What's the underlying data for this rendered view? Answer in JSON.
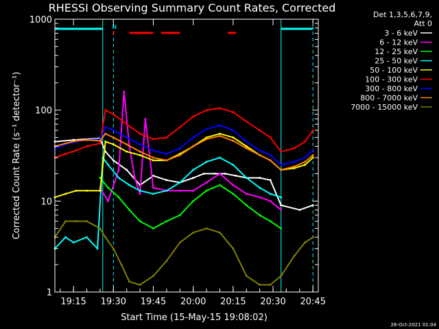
{
  "chart_data": {
    "type": "line",
    "title": "RHESSI Observing Summary Count Rates, Corrected",
    "xlabel": "Start Time (15-May-15 19:08:02)",
    "ylabel": "Corrected Count Rate (s⁻¹ detector⁻¹)",
    "y_scale": "log",
    "ylim": [
      1,
      1000
    ],
    "y_ticks": [
      {
        "value": 1,
        "label": "1"
      },
      {
        "value": 10,
        "label": "10"
      },
      {
        "value": 100,
        "label": "100"
      },
      {
        "value": 1000,
        "label": "1000"
      }
    ],
    "xlim": [
      "19:08",
      "20:47"
    ],
    "x_ticks": [
      "19:15",
      "19:30",
      "19:45",
      "20:00",
      "20:15",
      "20:30",
      "20:45"
    ],
    "legend_header": [
      "Det 1,3,5,6,7,9,",
      "Att 0"
    ],
    "legend_placement": "right",
    "timestamp": "26-Oct-2021 01:04",
    "annotations": {
      "N": {
        "time": "19:29",
        "label": "N",
        "color": "#00ffff"
      },
      "F": {
        "time": "19:29",
        "label": "F",
        "color": "#ff0000"
      }
    },
    "flags": {
      "saa_night_bars": [
        [
          "19:08",
          "19:26"
        ],
        [
          "20:33",
          "20:45"
        ]
      ],
      "flare_bars": [
        [
          "19:36",
          "19:45"
        ],
        [
          "19:48",
          "19:55"
        ],
        [
          "20:13",
          "20:16"
        ]
      ]
    },
    "vlines": {
      "solid": [
        "19:08",
        "19:26",
        "20:33"
      ],
      "dashed": [
        "19:30",
        "20:45"
      ]
    },
    "series": [
      {
        "name": "3 - 6 keV",
        "color": "#ffffff",
        "x": [
          "19:08",
          "19:15",
          "19:25",
          "19:27",
          "19:30",
          "19:35",
          "19:40",
          "19:45",
          "19:50",
          "19:55",
          "20:00",
          "20:04",
          "20:08",
          "20:12",
          "20:16",
          "20:20",
          "20:25",
          "20:29",
          "20:33",
          "20:40",
          "20:45"
        ],
        "y": [
          45,
          47,
          49,
          35,
          28,
          22,
          15,
          19,
          17,
          16,
          18,
          20,
          20,
          20,
          19,
          18,
          18,
          17,
          9,
          8,
          9
        ]
      },
      {
        "name": "6 - 12 keV",
        "color": "#ff00ff",
        "x": [
          "19:25",
          "19:28",
          "19:32",
          "19:34",
          "19:36",
          "19:38",
          "19:40",
          "19:42",
          "19:45",
          "19:50",
          "19:55",
          "20:00",
          "20:05",
          "20:10",
          "20:15",
          "20:20",
          "20:25",
          "20:29",
          "20:33"
        ],
        "y": [
          14,
          10,
          22,
          160,
          40,
          18,
          12,
          80,
          14,
          13,
          13,
          13,
          16,
          20,
          15,
          12,
          11,
          10,
          8
        ]
      },
      {
        "name": "12 - 25 keV",
        "color": "#00ff00",
        "x": [
          "19:25",
          "19:28",
          "19:32",
          "19:36",
          "19:40",
          "19:45",
          "19:50",
          "19:55",
          "20:00",
          "20:05",
          "20:10",
          "20:15",
          "20:20",
          "20:25",
          "20:29",
          "20:33"
        ],
        "y": [
          18,
          14,
          11,
          8,
          6,
          5,
          6,
          7,
          10,
          13,
          15,
          12,
          9,
          7,
          6,
          5
        ]
      },
      {
        "name": "25 - 50 keV",
        "color": "#00ffff",
        "x": [
          "19:08",
          "19:12",
          "19:15",
          "19:20",
          "19:24",
          "19:26",
          "19:28",
          "19:32",
          "19:36",
          "19:40",
          "19:45",
          "19:50",
          "19:55",
          "20:00",
          "20:05",
          "20:10",
          "20:15",
          "20:20",
          "20:25",
          "20:29",
          "20:33"
        ],
        "y": [
          3,
          4,
          3.5,
          4,
          3,
          30,
          25,
          18,
          15,
          13,
          12,
          13,
          16,
          22,
          27,
          30,
          25,
          18,
          14,
          12,
          11
        ]
      },
      {
        "name": "50 - 100 keV",
        "color": "#ffff00",
        "x": [
          "19:08",
          "19:12",
          "19:16",
          "19:20",
          "19:25",
          "19:27",
          "19:30",
          "19:35",
          "19:40",
          "19:45",
          "19:50",
          "19:55",
          "20:00",
          "20:05",
          "20:10",
          "20:15",
          "20:20",
          "20:25",
          "20:29",
          "20:33",
          "20:38",
          "20:42",
          "20:45"
        ],
        "y": [
          11,
          12,
          13,
          13,
          13,
          45,
          42,
          35,
          32,
          28,
          28,
          33,
          40,
          50,
          55,
          50,
          40,
          32,
          28,
          22,
          23,
          25,
          30
        ]
      },
      {
        "name": "100 - 300 keV",
        "color": "#ff0000",
        "x": [
          "19:08",
          "19:12",
          "19:16",
          "19:20",
          "19:25",
          "19:27",
          "19:30",
          "19:35",
          "19:40",
          "19:45",
          "19:50",
          "19:55",
          "20:00",
          "20:05",
          "20:10",
          "20:15",
          "20:20",
          "20:25",
          "20:29",
          "20:33",
          "20:38",
          "20:42",
          "20:45"
        ],
        "y": [
          30,
          33,
          36,
          40,
          43,
          100,
          90,
          70,
          55,
          48,
          50,
          65,
          85,
          100,
          105,
          95,
          75,
          60,
          50,
          35,
          38,
          45,
          60
        ]
      },
      {
        "name": "300 - 800 keV",
        "color": "#0000ff",
        "x": [
          "19:08",
          "19:12",
          "19:16",
          "19:20",
          "19:25",
          "19:27",
          "19:30",
          "19:35",
          "19:40",
          "19:45",
          "19:50",
          "19:55",
          "20:00",
          "20:05",
          "20:10",
          "20:15",
          "20:20",
          "20:25",
          "20:29",
          "20:33",
          "20:38",
          "20:42",
          "20:45"
        ],
        "y": [
          38,
          42,
          45,
          47,
          48,
          65,
          60,
          50,
          42,
          36,
          33,
          38,
          50,
          62,
          68,
          60,
          45,
          36,
          32,
          25,
          27,
          30,
          36
        ]
      },
      {
        "name": "800 - 7000 keV",
        "color": "#ff8000",
        "x": [
          "19:08",
          "19:12",
          "19:16",
          "19:20",
          "19:25",
          "19:27",
          "19:30",
          "19:35",
          "19:40",
          "19:45",
          "19:50",
          "19:55",
          "20:00",
          "20:05",
          "20:10",
          "20:15",
          "20:20",
          "20:25",
          "20:29",
          "20:33",
          "20:38",
          "20:42",
          "20:45"
        ],
        "y": [
          40,
          43,
          46,
          47,
          46,
          55,
          50,
          42,
          35,
          30,
          28,
          32,
          40,
          48,
          52,
          46,
          38,
          32,
          28,
          22,
          24,
          27,
          32
        ]
      },
      {
        "name": "7000 - 15000 keV",
        "color": "#808000",
        "x": [
          "19:08",
          "19:12",
          "19:16",
          "19:20",
          "19:25",
          "19:27",
          "19:30",
          "19:33",
          "19:36",
          "19:40",
          "19:45",
          "19:50",
          "19:55",
          "20:00",
          "20:05",
          "20:10",
          "20:15",
          "20:20",
          "20:25",
          "20:29",
          "20:33",
          "20:38",
          "20:42",
          "20:45"
        ],
        "y": [
          4,
          6,
          6,
          6,
          5,
          4,
          3,
          2,
          1.3,
          1.2,
          1.5,
          2.2,
          3.5,
          4.5,
          5,
          4.5,
          3,
          1.5,
          1.2,
          1.2,
          1.5,
          2.5,
          3.5,
          4
        ]
      }
    ]
  }
}
